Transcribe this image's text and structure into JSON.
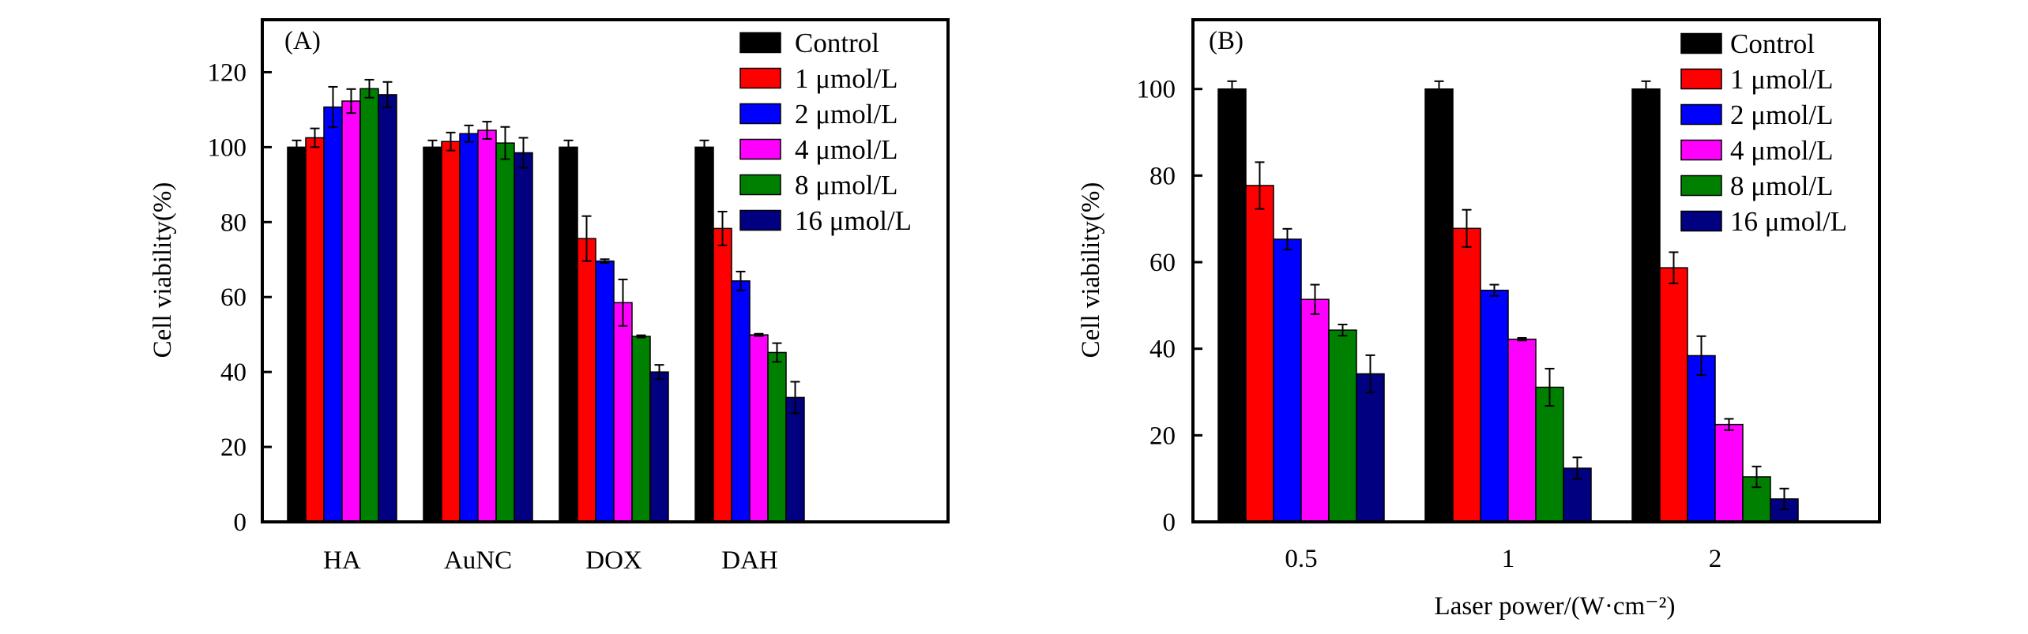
{
  "chart_data": [
    {
      "type": "bar",
      "panel_label": "(A)",
      "title": "",
      "xlabel": "",
      "ylabel": "Cell viability(%)",
      "ylim": [
        0,
        134
      ],
      "yticks": [
        0,
        20,
        40,
        60,
        80,
        100,
        120
      ],
      "grid": false,
      "legend_position": "top-right",
      "categories": [
        "HA",
        "AuNC",
        "DOX",
        "DAH"
      ],
      "series": [
        {
          "name": "Control",
          "color": "#000000",
          "values": [
            100,
            100,
            100,
            100
          ],
          "errors": [
            1.8,
            1.8,
            1.8,
            1.8
          ]
        },
        {
          "name": "1 μmol/L",
          "color": "#ff0000",
          "values": [
            102.5,
            101.5,
            75.6,
            78.3
          ],
          "errors": [
            2.5,
            2.4,
            6.0,
            4.5
          ]
        },
        {
          "name": "2 μmol/L",
          "color": "#0000ff",
          "values": [
            110.7,
            103.6,
            69.6,
            64.3
          ],
          "errors": [
            5.4,
            2.2,
            0.5,
            2.5
          ]
        },
        {
          "name": "4 μmol/L",
          "color": "#ff00ff",
          "values": [
            112.3,
            104.5,
            58.5,
            49.9
          ],
          "errors": [
            3.2,
            2.3,
            6.2,
            0.3
          ]
        },
        {
          "name": "8 μmol/L",
          "color": "#008000",
          "values": [
            115.6,
            101.1,
            49.5,
            45.2
          ],
          "errors": [
            2.4,
            4.3,
            0.3,
            2.5
          ]
        },
        {
          "name": "16 μmol/L",
          "color": "#000080",
          "values": [
            114.0,
            98.5,
            40.0,
            33.2
          ],
          "errors": [
            3.4,
            4.0,
            1.9,
            4.2
          ]
        }
      ]
    },
    {
      "type": "bar",
      "panel_label": "(B)",
      "title": "",
      "xlabel": "Laser power/(W·cm⁻²)",
      "ylabel": "Cell viability(%)",
      "ylim": [
        0,
        116
      ],
      "yticks": [
        0,
        20,
        40,
        60,
        80,
        100
      ],
      "grid": false,
      "legend_position": "top-right",
      "categories": [
        "0.5",
        "1",
        "2"
      ],
      "series": [
        {
          "name": "Control",
          "color": "#000000",
          "values": [
            100,
            100,
            100
          ],
          "errors": [
            1.8,
            1.8,
            1.8
          ]
        },
        {
          "name": "1 μmol/L",
          "color": "#ff0000",
          "values": [
            77.7,
            67.8,
            58.7
          ],
          "errors": [
            5.4,
            4.3,
            3.6
          ]
        },
        {
          "name": "2 μmol/L",
          "color": "#0000ff",
          "values": [
            65.3,
            53.5,
            38.4
          ],
          "errors": [
            2.4,
            1.3,
            4.5
          ]
        },
        {
          "name": "4 μmol/L",
          "color": "#ff00ff",
          "values": [
            51.4,
            42.2,
            22.5
          ],
          "errors": [
            3.4,
            0.3,
            1.3
          ]
        },
        {
          "name": "8 μmol/L",
          "color": "#008000",
          "values": [
            44.3,
            31.1,
            10.4
          ],
          "errors": [
            1.3,
            4.3,
            2.4
          ]
        },
        {
          "name": "16 μmol/L",
          "color": "#000080",
          "values": [
            34.2,
            12.4,
            5.3
          ],
          "errors": [
            4.3,
            2.5,
            2.4
          ]
        }
      ]
    }
  ]
}
